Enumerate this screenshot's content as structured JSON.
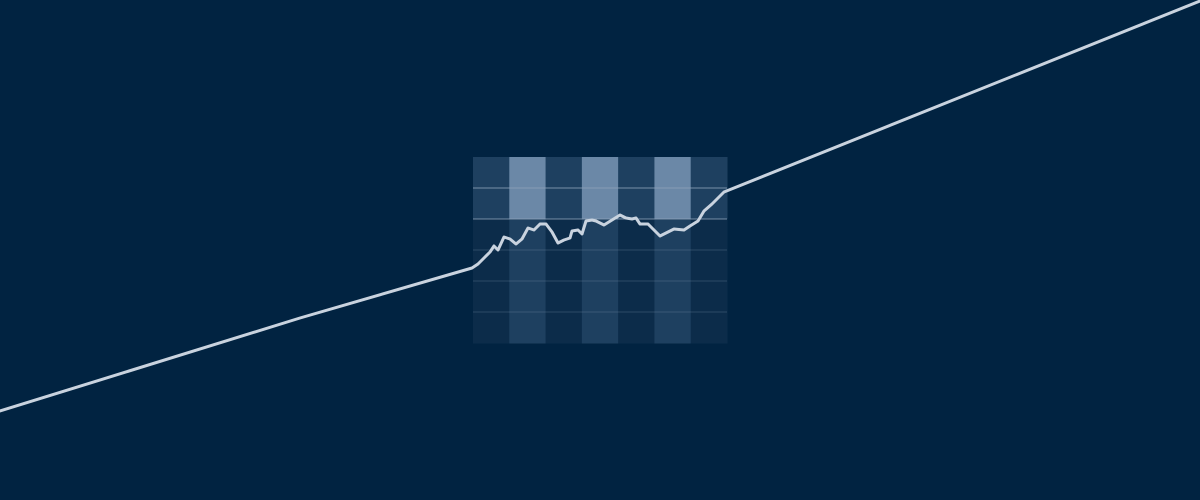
{
  "colors": {
    "background": "#012341",
    "line": "#c9d3df",
    "panel_dark": "#0c2c4a",
    "panel_mid": "#1e4060",
    "panel_light": "#6b88a7",
    "grid_line": "#8ea3b9"
  },
  "panel": {
    "columns": 7,
    "rows": 6,
    "highlight_columns": [
      1,
      3,
      5
    ],
    "highlight_rows": 2,
    "tint_rows": 2
  }
}
